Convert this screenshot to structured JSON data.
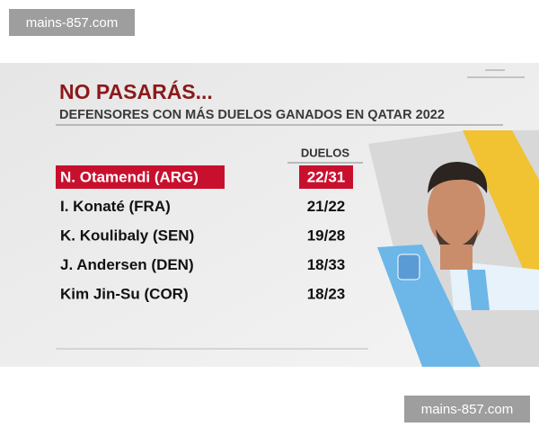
{
  "watermarks": [
    "mains-857.com",
    "mains-857.com"
  ],
  "header": {
    "title": "NO PASARÁS...",
    "subtitle": "DEFENSORES CON MÁS DUELOS GANADOS EN QATAR 2022"
  },
  "table": {
    "column_header": "DUELOS",
    "highlighted_row": 0,
    "rows": [
      [
        "N. Otamendi (ARG)",
        "22/31"
      ],
      [
        "I. Konaté (FRA)",
        "21/22"
      ],
      [
        "K. Koulibaly (SEN)",
        "19/28"
      ],
      [
        "J. Andersen (DEN)",
        "18/33"
      ],
      [
        "Kim Jin-Su (COR)",
        "18/23"
      ]
    ]
  }
}
